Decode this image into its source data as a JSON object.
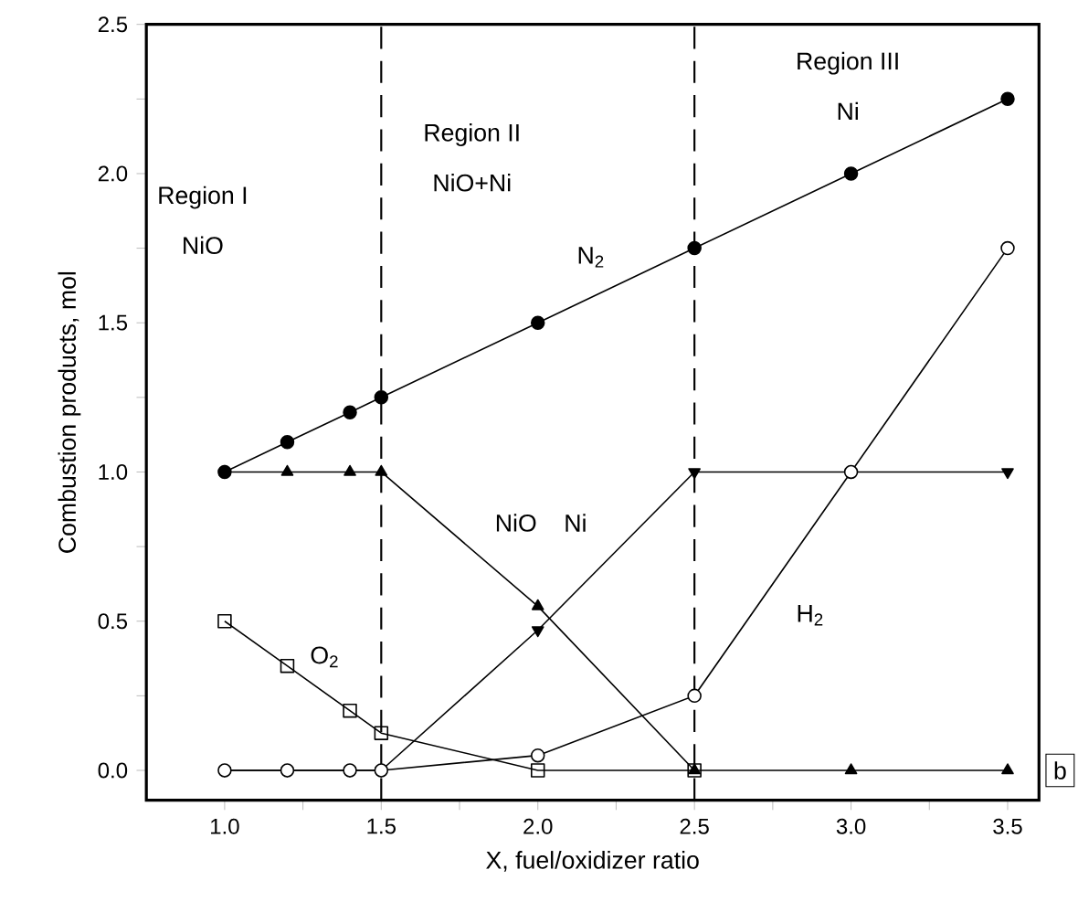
{
  "chart_data": {
    "type": "line",
    "xlabel": "X, fuel/oxidizer ratio",
    "ylabel": "Combustion products, mol",
    "x": [
      1.0,
      1.2,
      1.4,
      1.5,
      2.0,
      2.5,
      3.0,
      3.5
    ],
    "series": [
      {
        "name": "N$_{2}$",
        "color": "#000000",
        "marker": "circle",
        "values": [
          1.0,
          1.1,
          1.2,
          1.25,
          1.5,
          1.75,
          2.0,
          2.25
        ]
      },
      {
        "name": "NiO",
        "color": "#000000",
        "marker": "triangle",
        "values": [
          1.0,
          1.0,
          1.0,
          1.0,
          0.55,
          0.0,
          0.0,
          0.0
        ]
      },
      {
        "name": "O$_{2}$",
        "color": "#000000",
        "marker": "square",
        "x": [
          1.0,
          1.2,
          1.4,
          1.5,
          2.0,
          2.5
        ],
        "values": [
          0.5,
          0.35,
          0.2,
          0.125,
          0.0,
          0.0
        ]
      },
      {
        "name": "Ni",
        "color": "#000000",
        "marker": "triangle",
        "values": [
          0.0,
          0.0,
          0.0,
          0.0,
          0.47,
          1.0,
          1.0,
          1.0
        ]
      },
      {
        "name": "H$_{2}$",
        "color": "#000000",
        "marker": "circle",
        "values": [
          0.0,
          0.0,
          0.0,
          0.0,
          0.05,
          0.25,
          1.0,
          1.75
        ]
      }
    ],
    "xlim": [
      0.75,
      3.6
    ],
    "ylim": [
      -0.1,
      2.5
    ],
    "xticks": [
      {
        "value": 1.0,
        "label": "1.0"
      },
      {
        "value": 1.25,
        "label": null
      },
      {
        "value": 1.5,
        "label": "1.5"
      },
      {
        "value": 1.75,
        "label": null
      },
      {
        "value": 2.0,
        "label": "2.0"
      },
      {
        "value": 2.25,
        "label": null
      },
      {
        "value": 2.5,
        "label": "2.5"
      },
      {
        "value": 2.75,
        "label": null
      },
      {
        "value": 3.0,
        "label": "3.0"
      },
      {
        "value": 3.25,
        "label": null
      },
      {
        "value": 3.5,
        "label": "3.5"
      }
    ],
    "yticks": [
      {
        "value": 0.0,
        "label": "0.0"
      },
      {
        "value": 0.25,
        "label": null
      },
      {
        "value": 0.5,
        "label": "0.5"
      },
      {
        "value": 0.75,
        "label": null
      },
      {
        "value": 1.0,
        "label": "1.0"
      },
      {
        "value": 1.25,
        "label": null
      },
      {
        "value": 1.5,
        "label": "1.5"
      },
      {
        "value": 1.75,
        "label": null
      },
      {
        "value": 2.0,
        "label": "2.0"
      },
      {
        "value": 2.25,
        "label": null
      },
      {
        "value": 2.5,
        "label": "2.5"
      }
    ],
    "ref_lines": [
      {
        "axis": "x",
        "value": 1.5,
        "line_style": "dashed"
      },
      {
        "axis": "x",
        "value": 2.5,
        "line_style": "dashed"
      }
    ],
    "annotations": [
      "Region I",
      "NiO",
      "Region II",
      "NiO+Ni",
      "Region III",
      "Ni",
      "b"
    ]
  }
}
